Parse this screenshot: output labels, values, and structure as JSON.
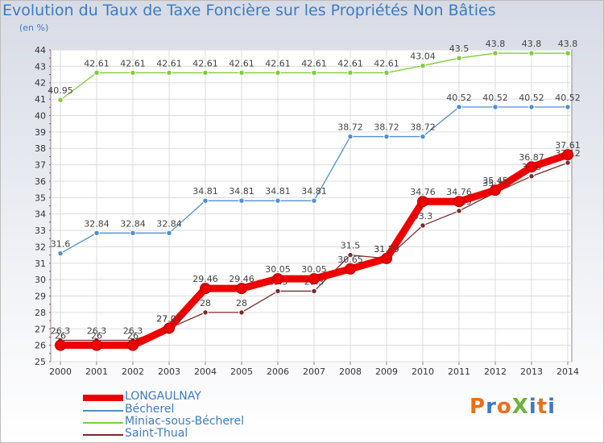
{
  "title": "Evolution du Taux de Taxe Foncière sur les Propriétés Non Bâties",
  "subtitle": "(en %)",
  "logo_text": "ProXiti",
  "logo_colors": [
    "#e8701a",
    "#3c7bc3",
    "#e8701a",
    "#6bb33e",
    "#3c7bc3",
    "#e8701a",
    "#3c7bc3"
  ],
  "chart_data": {
    "type": "line",
    "categories": [
      "2000",
      "2001",
      "2002",
      "2003",
      "2004",
      "2005",
      "2006",
      "2007",
      "2008",
      "2009",
      "2010",
      "2011",
      "2012",
      "2013",
      "2014"
    ],
    "ylim": [
      25,
      44
    ],
    "yticks": [
      "25",
      "26",
      "27",
      "28",
      "29",
      "30",
      "31",
      "32",
      "33",
      "34",
      "35",
      "36",
      "37",
      "38",
      "39",
      "40",
      "41",
      "42",
      "43",
      "44"
    ],
    "grid": true,
    "series": [
      {
        "name": "Miniac-sous-Bécherel",
        "color": "#7fcd3a",
        "weight": "thin",
        "values": [
          40.95,
          42.61,
          42.61,
          42.61,
          42.61,
          42.61,
          42.61,
          42.61,
          42.61,
          42.61,
          43.04,
          43.5,
          43.8,
          43.8,
          43.8
        ],
        "labels": [
          "40.95",
          "42.61",
          "42.61",
          "42.61",
          "42.61",
          "42.61",
          "42.61",
          "42.61",
          "42.61",
          "42.61",
          "43.04",
          "43.5",
          "43.8",
          "43.8",
          "43.8"
        ]
      },
      {
        "name": "Bécherel",
        "color": "#4f8fcf",
        "weight": "thin",
        "values": [
          31.6,
          32.84,
          32.84,
          32.84,
          34.81,
          34.81,
          34.81,
          34.81,
          38.72,
          38.72,
          38.72,
          40.52,
          40.52,
          40.52,
          40.52
        ],
        "labels": [
          "31.6",
          "32.84",
          "32.84",
          "32.84",
          "34.81",
          "34.81",
          "34.81",
          "34.81",
          "38.72",
          "38.72",
          "38.72",
          "40.52",
          "40.52",
          "40.52",
          "40.52"
        ]
      },
      {
        "name": "Saint-Thual",
        "color": "#7b2a2a",
        "weight": "thin",
        "values": [
          26.3,
          26.3,
          26.3,
          27.04,
          28,
          28,
          29.3,
          29.3,
          31.5,
          31.29,
          33.3,
          34.19,
          35.31,
          36.3,
          37.12
        ],
        "labels": [
          "26.3",
          "26.3",
          "26.3",
          "27.04",
          "28",
          "28",
          "29.3",
          "29.3",
          "31.5",
          "31.29",
          "33.3",
          "34.19",
          "35.31",
          "36.3",
          "37.12"
        ]
      },
      {
        "name": "LONGAULNAY",
        "color": "#ee0000",
        "weight": "thick",
        "values": [
          26,
          26,
          26,
          27.04,
          29.46,
          29.46,
          30.05,
          30.05,
          30.65,
          31.29,
          34.76,
          34.76,
          35.45,
          36.87,
          37.61
        ],
        "labels": [
          "26",
          "26",
          "26",
          "27.04",
          "29.46",
          "29.46",
          "30.05",
          "30.05",
          "30.65",
          "31.29",
          "34.76",
          "34.76",
          "35.45",
          "36.87",
          "37.61"
        ]
      }
    ]
  },
  "legend": [
    {
      "label": "LONGAULNAY",
      "color": "#ee0000",
      "weight": "thick"
    },
    {
      "label": "Bécherel",
      "color": "#4f8fcf",
      "weight": "thin"
    },
    {
      "label": "Miniac-sous-Bécherel",
      "color": "#7fcd3a",
      "weight": "thin"
    },
    {
      "label": "Saint-Thual",
      "color": "#7b2a2a",
      "weight": "thin"
    }
  ]
}
